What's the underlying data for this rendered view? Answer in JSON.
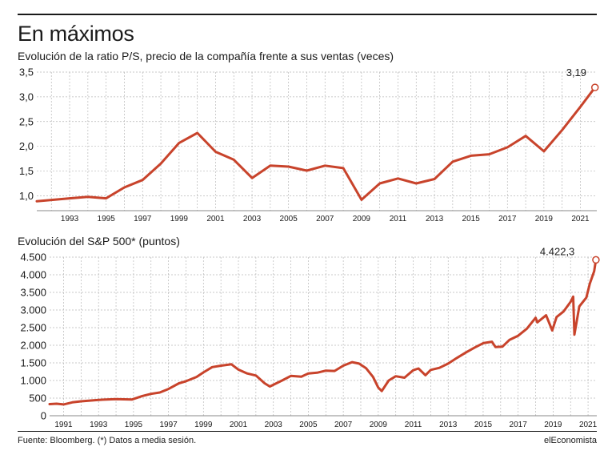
{
  "header": {
    "title": "En máximos"
  },
  "footer": {
    "source": "Fuente: Bloomberg. (*) Datos a media sesión.",
    "brand": "elEconomista"
  },
  "colors": {
    "series": "#c8432b",
    "grid": "#b8b8b8",
    "text": "#1a1a1a"
  },
  "chart_data": [
    {
      "type": "line",
      "title": "Evolución de la ratio P/S, precio de la compañía frente a sus ventas (veces)",
      "ylim": [
        0.7,
        3.5
      ],
      "xlim": [
        1991.2,
        2021.9
      ],
      "yticks": [
        1.0,
        1.5,
        2.0,
        2.5,
        3.0,
        3.5
      ],
      "ytick_labels": [
        "1,0",
        "1,5",
        "2,0",
        "2,5",
        "3,0",
        "3,5"
      ],
      "xticks": [
        1993,
        1995,
        1997,
        1999,
        2001,
        2003,
        2005,
        2007,
        2009,
        2011,
        2013,
        2015,
        2017,
        2019,
        2021
      ],
      "xtick_labels": [
        "1993",
        "1995",
        "1997",
        "1999",
        "2001",
        "2003",
        "2005",
        "2007",
        "2009",
        "2011",
        "2013",
        "2015",
        "2017",
        "2019",
        "2021"
      ],
      "grid": true,
      "x": [
        1991.2,
        1993.0,
        1994.0,
        1995.0,
        1996.0,
        1997.0,
        1998.0,
        1999.0,
        2000.0,
        2001.0,
        2002.0,
        2003.0,
        2004.0,
        2005.0,
        2006.0,
        2007.0,
        2008.0,
        2009.0,
        2010.0,
        2011.0,
        2012.0,
        2013.0,
        2014.0,
        2015.0,
        2016.0,
        2017.0,
        2018.0,
        2019.0,
        2020.0,
        2021.0,
        2021.8
      ],
      "y": [
        0.89,
        0.95,
        0.98,
        0.95,
        1.17,
        1.32,
        1.65,
        2.07,
        2.27,
        1.89,
        1.73,
        1.36,
        1.61,
        1.59,
        1.51,
        1.61,
        1.56,
        0.92,
        1.25,
        1.35,
        1.25,
        1.34,
        1.69,
        1.81,
        1.84,
        1.98,
        2.21,
        1.9,
        2.33,
        2.8,
        3.19
      ],
      "annotation": {
        "label": "3,19",
        "value": 3.19
      }
    },
    {
      "type": "line",
      "title": "Evolución del S&P 500* (puntos)",
      "ylim": [
        0,
        4500
      ],
      "xlim": [
        1990.2,
        2021.5
      ],
      "yticks": [
        0,
        500,
        1000,
        1500,
        2000,
        2500,
        3000,
        3500,
        4000,
        4500
      ],
      "ytick_labels": [
        "0",
        "500",
        "1.000",
        "1.500",
        "2.000",
        "2.500",
        "3.000",
        "3.500",
        "4.000",
        "4.500"
      ],
      "xticks": [
        1991,
        1993,
        1995,
        1997,
        1999,
        2001,
        2003,
        2005,
        2007,
        2009,
        2011,
        2013,
        2015,
        2017,
        2019,
        2021
      ],
      "xtick_labels": [
        "1991",
        "1993",
        "1995",
        "1997",
        "1999",
        "2001",
        "2003",
        "2005",
        "2007",
        "2009",
        "2011",
        "2013",
        "2015",
        "2017",
        "2019",
        "2021"
      ],
      "grid": true,
      "x": [
        1990.2,
        1990.6,
        1991.0,
        1991.5,
        1992.0,
        1993.0,
        1994.0,
        1994.9,
        1995.5,
        1996.0,
        1996.5,
        1997.0,
        1997.6,
        1998.0,
        1998.6,
        1999.0,
        1999.5,
        2000.0,
        2000.6,
        2001.0,
        2001.5,
        2002.0,
        2002.5,
        2002.8,
        2003.5,
        2004.0,
        2004.6,
        2005.0,
        2005.5,
        2006.0,
        2006.5,
        2007.0,
        2007.5,
        2007.9,
        2008.3,
        2008.7,
        2009.0,
        2009.2,
        2009.6,
        2010.0,
        2010.5,
        2011.0,
        2011.3,
        2011.7,
        2012.0,
        2012.5,
        2013.0,
        2013.5,
        2014.0,
        2014.5,
        2015.0,
        2015.5,
        2015.7,
        2016.1,
        2016.5,
        2017.0,
        2017.5,
        2018.0,
        2018.1,
        2018.6,
        2018.95,
        2019.2,
        2019.6,
        2020.0,
        2020.15,
        2020.22,
        2020.5,
        2020.9,
        2021.1,
        2021.35,
        2021.45
      ],
      "y": [
        330,
        340,
        320,
        380,
        410,
        450,
        470,
        460,
        560,
        620,
        660,
        760,
        920,
        980,
        1100,
        1230,
        1380,
        1420,
        1460,
        1310,
        1200,
        1140,
        920,
        830,
        1000,
        1130,
        1110,
        1200,
        1220,
        1280,
        1270,
        1420,
        1520,
        1480,
        1350,
        1100,
        800,
        700,
        1000,
        1120,
        1080,
        1290,
        1340,
        1150,
        1300,
        1360,
        1480,
        1640,
        1790,
        1930,
        2060,
        2100,
        1950,
        1960,
        2150,
        2270,
        2470,
        2780,
        2650,
        2850,
        2420,
        2800,
        2960,
        3230,
        3380,
        2300,
        3100,
        3350,
        3750,
        4100,
        4422.3
      ],
      "annotation": {
        "label": "4.422,3",
        "value": 4422.3
      }
    }
  ]
}
